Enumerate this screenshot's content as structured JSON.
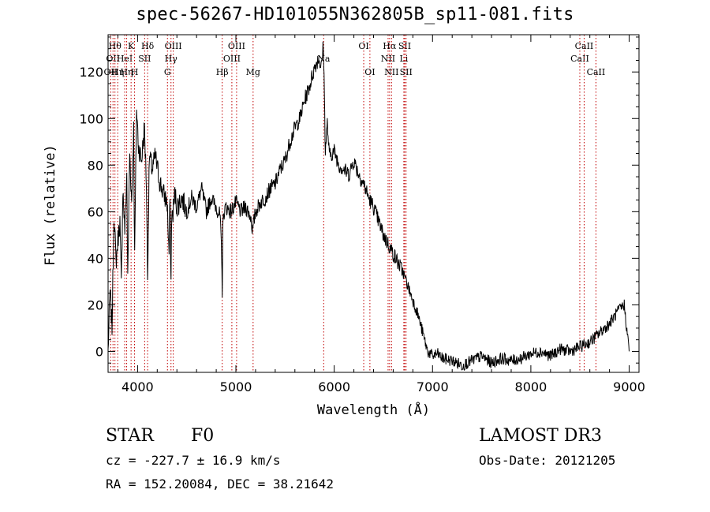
{
  "title": "spec-56267-HD101055N362805B_sp11-081.fits",
  "footer": {
    "object_class": "STAR",
    "subclass": "F0",
    "survey": "LAMOST DR3",
    "redshift": "cz = -227.7 ± 16.9 km/s",
    "obs_date": "Obs-Date: 20121205",
    "coords": "RA = 152.20084, DEC =  38.21642"
  },
  "chart_data": {
    "type": "line",
    "xlabel": "Wavelength (Å)",
    "ylabel": "Flux (relative)",
    "xlim": [
      3700,
      9100
    ],
    "ylim": [
      -9,
      136
    ],
    "xticks": [
      4000,
      5000,
      6000,
      7000,
      8000,
      9000
    ],
    "yticks": [
      0,
      20,
      40,
      60,
      80,
      100,
      120
    ],
    "grid": false,
    "line_color": "#000000",
    "marker_color": "#c00000",
    "series": [
      {
        "x": [
          3700,
          3720,
          3740,
          3760,
          3780,
          3800,
          3820,
          3835,
          3850,
          3870,
          3890,
          3900,
          3920,
          3940,
          3960,
          3970,
          3990,
          4010,
          4040,
          4070,
          4090,
          4102,
          4120,
          4150,
          4180,
          4220,
          4260,
          4300,
          4320,
          4330,
          4340,
          4345,
          4360,
          4380,
          4400,
          4450,
          4500,
          4550,
          4600,
          4650,
          4700,
          4750,
          4800,
          4840,
          4855,
          4861,
          4867,
          4880,
          4900,
          4950,
          5000,
          5050,
          5100,
          5150,
          5170,
          5200,
          5250,
          5300,
          5350,
          5400,
          5450,
          5500,
          5550,
          5600,
          5650,
          5700,
          5750,
          5800,
          5840,
          5870,
          5890,
          5900,
          5910,
          5930,
          5950,
          6000,
          6050,
          6100,
          6150,
          6200,
          6250,
          6300,
          6350,
          6400,
          6450,
          6500,
          6550,
          6600,
          6650,
          6700,
          6750,
          6800,
          6850,
          6900,
          6950,
          7000,
          7050,
          7100,
          7200,
          7300,
          7400,
          7500,
          7600,
          7700,
          7800,
          7900,
          8000,
          8100,
          8200,
          8300,
          8400,
          8500,
          8600,
          8700,
          8800,
          8900,
          8950,
          9000
        ],
        "y": [
          0,
          26,
          10,
          60,
          38,
          48,
          56,
          28,
          70,
          52,
          76,
          30,
          86,
          64,
          96,
          40,
          104,
          88,
          82,
          96,
          72,
          32,
          84,
          78,
          84,
          74,
          68,
          64,
          42,
          66,
          30,
          56,
          60,
          68,
          62,
          66,
          60,
          66,
          62,
          70,
          60,
          66,
          62,
          58,
          40,
          26,
          54,
          60,
          62,
          60,
          64,
          60,
          62,
          58,
          52,
          60,
          64,
          66,
          70,
          72,
          78,
          82,
          90,
          96,
          100,
          108,
          114,
          122,
          126,
          122,
          132,
          110,
          86,
          98,
          84,
          86,
          80,
          78,
          76,
          82,
          76,
          72,
          66,
          62,
          56,
          50,
          46,
          42,
          38,
          34,
          28,
          22,
          16,
          8,
          0,
          -2,
          -1,
          -3,
          -4,
          -6,
          -4,
          -2,
          -5,
          -3,
          -4,
          -3,
          -1,
          0,
          -2,
          1,
          0,
          2,
          4,
          8,
          12,
          18,
          20,
          0
        ]
      }
    ],
    "line_markers": [
      {
        "wl": 3727,
        "label": "OII",
        "row": 3
      },
      {
        "wl": 3750,
        "label": "OII",
        "row": 2
      },
      {
        "wl": 3770,
        "label": "Hθ",
        "row": 1
      },
      {
        "wl": 3798,
        "label": "Hη",
        "row": 3
      },
      {
        "wl": 3869,
        "label": "HeI",
        "row": 2
      },
      {
        "wl": 3889,
        "label": "Hη",
        "row": 3
      },
      {
        "wl": 3934,
        "label": "K",
        "row": 1
      },
      {
        "wl": 3969,
        "label": "H",
        "row": 3
      },
      {
        "wl": 4072,
        "label": "SII",
        "row": 2
      },
      {
        "wl": 4102,
        "label": "Hδ",
        "row": 1
      },
      {
        "wl": 4304,
        "label": "G",
        "row": 3
      },
      {
        "wl": 4340,
        "label": "Hγ",
        "row": 2
      },
      {
        "wl": 4363,
        "label": "OIII",
        "row": 1
      },
      {
        "wl": 4861,
        "label": "Hβ",
        "row": 3
      },
      {
        "wl": 4959,
        "label": "OIII",
        "row": 2
      },
      {
        "wl": 5007,
        "label": "OIII",
        "row": 1
      },
      {
        "wl": 5175,
        "label": "Mg",
        "row": 3
      },
      {
        "wl": 5893,
        "label": "Na",
        "row": 2
      },
      {
        "wl": 6300,
        "label": "OI",
        "row": 1
      },
      {
        "wl": 6363,
        "label": "OI",
        "row": 3
      },
      {
        "wl": 6548,
        "label": "NII",
        "row": 2
      },
      {
        "wl": 6563,
        "label": "Hα",
        "row": 1
      },
      {
        "wl": 6583,
        "label": "NII",
        "row": 3
      },
      {
        "wl": 6708,
        "label": "Li",
        "row": 2
      },
      {
        "wl": 6717,
        "label": "SII",
        "row": 1
      },
      {
        "wl": 6731,
        "label": "SII",
        "row": 3
      },
      {
        "wl": 8498,
        "label": "CaII",
        "row": 2
      },
      {
        "wl": 8542,
        "label": "CaII",
        "row": 1
      },
      {
        "wl": 8662,
        "label": "CaII",
        "row": 3
      }
    ]
  }
}
